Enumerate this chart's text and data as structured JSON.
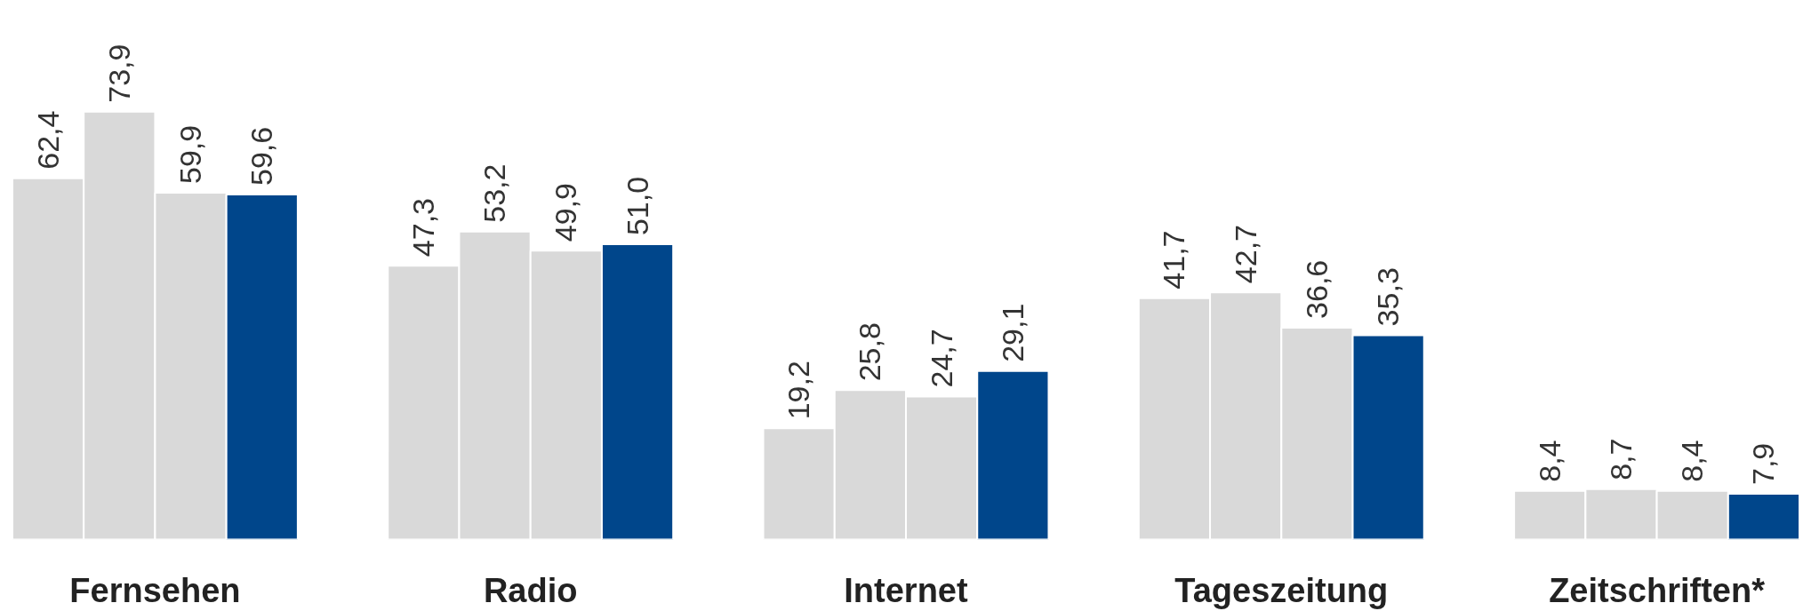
{
  "chart_data": {
    "type": "bar",
    "categories": [
      "Fernsehen",
      "Radio",
      "Internet",
      "Tageszeitung",
      "Zeitschriften*"
    ],
    "series": [
      {
        "color": "#d9d9d9",
        "values": [
          62.4,
          47.3,
          19.2,
          41.7,
          8.4
        ],
        "value_labels": [
          "62,4",
          "47,3",
          "19,2",
          "41,7",
          "8,4"
        ]
      },
      {
        "color": "#d9d9d9",
        "values": [
          73.9,
          53.2,
          25.8,
          42.7,
          8.7
        ],
        "value_labels": [
          "73,9",
          "53,2",
          "25,8",
          "42,7",
          "8,7"
        ]
      },
      {
        "color": "#d9d9d9",
        "values": [
          59.9,
          49.9,
          24.7,
          36.6,
          8.4
        ],
        "value_labels": [
          "59,9",
          "49,9",
          "24,7",
          "36,6",
          "8,4"
        ]
      },
      {
        "color": "#00468b",
        "values": [
          59.6,
          51.0,
          29.1,
          35.3,
          7.9
        ],
        "value_labels": [
          "59,6",
          "51,0",
          "29,1",
          "35,3",
          "7,9"
        ]
      }
    ],
    "grid": false
  }
}
